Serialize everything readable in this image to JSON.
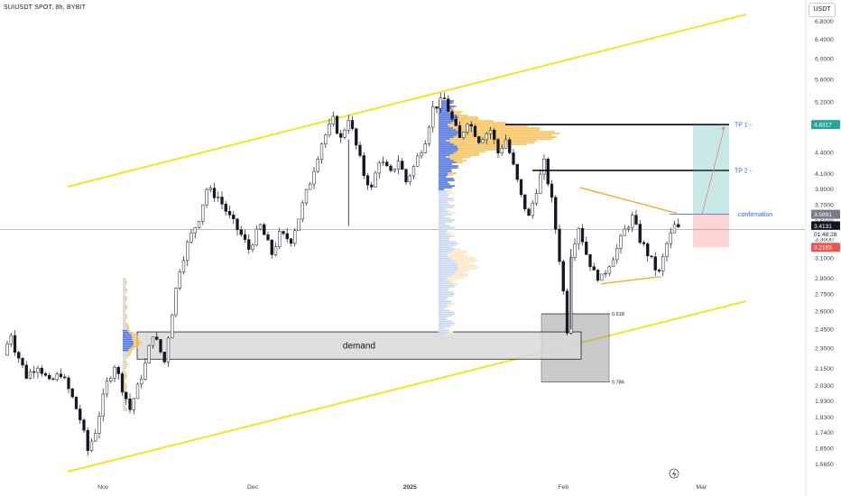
{
  "header": {
    "title": "SUIUSDT SPOT, 8h, BYBIT",
    "currency": "USDT"
  },
  "chart_data": {
    "type": "candlestick",
    "title": "SUIUSDT SPOT, 8h, BYBIT",
    "y_scale": "log",
    "ylim": [
      1.52,
      7.15
    ],
    "y_ticks": [
      "6.8000",
      "6.4000",
      "6.0000",
      "5.6000",
      "5.2000",
      "4.8000",
      "4.4000",
      "4.1000",
      "3.9000",
      "3.7000",
      "3.5000",
      "3.3000",
      "3.1000",
      "2.9000",
      "2.7500",
      "2.6000",
      "2.4500",
      "2.3000",
      "2.1500",
      "2.0300",
      "1.9300",
      "1.8300",
      "1.7400",
      "1.6500",
      "1.5650"
    ],
    "x_ticks": [
      "Nov",
      "Dec",
      "2025",
      "Feb",
      "Mar"
    ],
    "price_path": [
      [
        0,
        2.25
      ],
      [
        2,
        2.42
      ],
      [
        3,
        2.3
      ],
      [
        6,
        2.1
      ],
      [
        9,
        2.18
      ],
      [
        12,
        2.05
      ],
      [
        15,
        2.12
      ],
      [
        18,
        1.95
      ],
      [
        20,
        1.82
      ],
      [
        22,
        1.64
      ],
      [
        24,
        1.75
      ],
      [
        27,
        2.05
      ],
      [
        29,
        2.18
      ],
      [
        31,
        2.02
      ],
      [
        33,
        1.88
      ],
      [
        35,
        2.02
      ],
      [
        37,
        2.18
      ],
      [
        39,
        2.42
      ],
      [
        42,
        2.2
      ],
      [
        44,
        2.6
      ],
      [
        46,
        3.0
      ],
      [
        48,
        3.25
      ],
      [
        51,
        3.55
      ],
      [
        53,
        3.9
      ],
      [
        56,
        3.8
      ],
      [
        59,
        3.55
      ],
      [
        62,
        3.35
      ],
      [
        64,
        3.2
      ],
      [
        67,
        3.45
      ],
      [
        70,
        3.15
      ],
      [
        72,
        3.35
      ],
      [
        75,
        3.3
      ],
      [
        77,
        3.55
      ],
      [
        80,
        4.0
      ],
      [
        83,
        4.55
      ],
      [
        86,
        4.9
      ],
      [
        88,
        4.6
      ],
      [
        90,
        4.95
      ],
      [
        92,
        4.5
      ],
      [
        94,
        4.1
      ],
      [
        96,
        3.9
      ],
      [
        98,
        4.3
      ],
      [
        101,
        4.1
      ],
      [
        103,
        4.3
      ],
      [
        105,
        4.0
      ],
      [
        107,
        4.2
      ],
      [
        110,
        4.6
      ],
      [
        112,
        5.1
      ],
      [
        115,
        5.25
      ],
      [
        117,
        4.9
      ],
      [
        119,
        4.6
      ],
      [
        121,
        4.9
      ],
      [
        124,
        4.6
      ],
      [
        127,
        4.75
      ],
      [
        129,
        4.4
      ],
      [
        131,
        4.6
      ],
      [
        133,
        4.2
      ],
      [
        135,
        3.8
      ],
      [
        137,
        3.55
      ],
      [
        139,
        3.9
      ],
      [
        141,
        4.25
      ],
      [
        143,
        3.75
      ],
      [
        145,
        3.1
      ],
      [
        147,
        2.45
      ],
      [
        148,
        3.15
      ],
      [
        150,
        3.45
      ],
      [
        152,
        3.15
      ],
      [
        154,
        2.95
      ],
      [
        156,
        2.9
      ],
      [
        158,
        3.05
      ],
      [
        160,
        3.2
      ],
      [
        162,
        3.4
      ],
      [
        164,
        3.55
      ],
      [
        166,
        3.3
      ],
      [
        168,
        3.15
      ],
      [
        170,
        3.0
      ],
      [
        171,
        2.95
      ],
      [
        173,
        3.25
      ],
      [
        175,
        3.45
      ],
      [
        176,
        3.41
      ]
    ],
    "annotations": [
      {
        "name": "tp1",
        "text": "TP 1 -",
        "price": 4.83
      },
      {
        "name": "tp2",
        "text": "TP 2 -",
        "price": 4.15
      },
      {
        "name": "confirmation",
        "text": "confirmation",
        "price": 3.59
      },
      {
        "name": "demand",
        "text": "demand",
        "price_top": 2.43,
        "price_bottom": 2.22
      },
      {
        "name": "fib",
        "levels": [
          {
            "text": "0.618",
            "price": 2.58
          },
          {
            "text": "0.786",
            "price": 2.06
          }
        ]
      }
    ],
    "price_labels": [
      {
        "text": "4.8317",
        "color": "#26a69a"
      },
      {
        "text": "3.5891",
        "color": "#787b86"
      },
      {
        "text": "3.4131",
        "color": "#131722"
      },
      {
        "text": "01:48:28",
        "color": "#131722"
      },
      {
        "text": "3.2165",
        "color": "#ef5350"
      }
    ],
    "colors": {
      "up": "#131722",
      "down": "#131722",
      "channel": "#f5e12a",
      "triangle": "#f5a623",
      "volume_profile_blue": "#4a72e0",
      "volume_profile_orange": "#f7c15a",
      "target_zone": "#26a69a",
      "stop_zone": "#ef5350"
    }
  }
}
